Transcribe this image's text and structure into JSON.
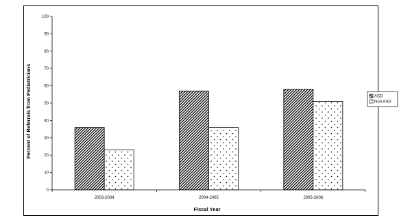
{
  "chart_data": {
    "type": "bar",
    "title": "",
    "categories": [
      "2003-2004",
      "2004-2005",
      "2005-2006"
    ],
    "series": [
      {
        "name": "ASD",
        "values": [
          36,
          57,
          58
        ],
        "pattern": "diagonal-hatch"
      },
      {
        "name": "Non ASD",
        "values": [
          23,
          36,
          51
        ],
        "pattern": "dots"
      }
    ],
    "xlabel": "Fiscal Year",
    "ylabel": "Percent of Referrals from Pediatricians",
    "ylim": [
      0,
      100
    ],
    "yticks": [
      0,
      10,
      20,
      30,
      40,
      50,
      60,
      70,
      80,
      90,
      100
    ],
    "grid": false,
    "legend_position": "right",
    "colors": {
      "bar_outline": "#000000",
      "bar_fill": "#ffffff",
      "pattern": "#000000"
    }
  }
}
